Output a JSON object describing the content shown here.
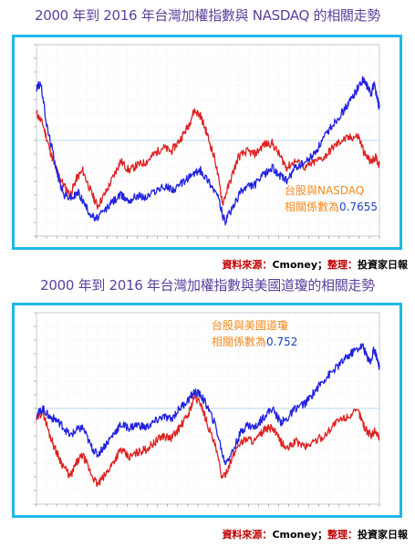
{
  "titles": {
    "chart1": "2000 年到 2016 年台灣加權指數與 NASDAQ 的相關走勢",
    "chart2": "2000 年到 2016 年台灣加權指數與美國道瓊的相關走勢"
  },
  "source": {
    "label": "資料來源：",
    "provider": "Cmoney；",
    "organizer_label": "整理：",
    "organizer": "投資家日報"
  },
  "chart_data": [
    {
      "type": "line",
      "annotation_title": "台股與NASDAQ",
      "correlation_label": "相關係數為",
      "correlation_value": "0.7655",
      "x_range": [
        2000,
        2016.3
      ],
      "y_range": [
        -70,
        70
      ],
      "series": [
        {
          "color": "#dd2222",
          "points": [
            [
              2000.0,
              20
            ],
            [
              2000.3,
              12
            ],
            [
              2000.6,
              -5
            ],
            [
              2000.9,
              -20
            ],
            [
              2001.2,
              -30
            ],
            [
              2001.6,
              -40
            ],
            [
              2001.9,
              -28
            ],
            [
              2002.2,
              -22
            ],
            [
              2002.6,
              -38
            ],
            [
              2002.9,
              -48
            ],
            [
              2003.3,
              -38
            ],
            [
              2003.7,
              -25
            ],
            [
              2004.0,
              -15
            ],
            [
              2004.4,
              -22
            ],
            [
              2004.8,
              -18
            ],
            [
              2005.2,
              -16
            ],
            [
              2005.6,
              -10
            ],
            [
              2006.0,
              -5
            ],
            [
              2006.4,
              -8
            ],
            [
              2006.8,
              0
            ],
            [
              2007.2,
              10
            ],
            [
              2007.5,
              22
            ],
            [
              2007.8,
              18
            ],
            [
              2008.1,
              5
            ],
            [
              2008.5,
              -15
            ],
            [
              2008.85,
              -46
            ],
            [
              2009.2,
              -30
            ],
            [
              2009.6,
              -12
            ],
            [
              2010.0,
              -8
            ],
            [
              2010.4,
              -10
            ],
            [
              2010.8,
              -3
            ],
            [
              2011.2,
              -2
            ],
            [
              2011.6,
              -12
            ],
            [
              2011.9,
              -20
            ],
            [
              2012.3,
              -15
            ],
            [
              2012.8,
              -20
            ],
            [
              2013.2,
              -16
            ],
            [
              2013.7,
              -12
            ],
            [
              2014.1,
              -5
            ],
            [
              2014.5,
              0
            ],
            [
              2014.9,
              2
            ],
            [
              2015.3,
              3
            ],
            [
              2015.6,
              -10
            ],
            [
              2015.9,
              -16
            ],
            [
              2016.1,
              -12
            ],
            [
              2016.3,
              -18
            ]
          ]
        },
        {
          "color": "#2222dd",
          "points": [
            [
              2000.0,
              38
            ],
            [
              2000.2,
              42
            ],
            [
              2000.5,
              10
            ],
            [
              2000.8,
              -10
            ],
            [
              2001.0,
              -25
            ],
            [
              2001.3,
              -40
            ],
            [
              2001.7,
              -42
            ],
            [
              2002.0,
              -38
            ],
            [
              2002.4,
              -50
            ],
            [
              2002.8,
              -58
            ],
            [
              2003.2,
              -52
            ],
            [
              2003.6,
              -45
            ],
            [
              2004.0,
              -40
            ],
            [
              2004.4,
              -44
            ],
            [
              2004.8,
              -40
            ],
            [
              2005.2,
              -42
            ],
            [
              2005.7,
              -36
            ],
            [
              2006.2,
              -34
            ],
            [
              2006.6,
              -36
            ],
            [
              2007.0,
              -30
            ],
            [
              2007.5,
              -24
            ],
            [
              2007.8,
              -22
            ],
            [
              2008.2,
              -30
            ],
            [
              2008.6,
              -40
            ],
            [
              2008.95,
              -60
            ],
            [
              2009.3,
              -50
            ],
            [
              2009.7,
              -38
            ],
            [
              2010.0,
              -34
            ],
            [
              2010.4,
              -32
            ],
            [
              2010.8,
              -25
            ],
            [
              2011.2,
              -20
            ],
            [
              2011.6,
              -26
            ],
            [
              2011.9,
              -30
            ],
            [
              2012.3,
              -20
            ],
            [
              2012.8,
              -16
            ],
            [
              2013.2,
              -10
            ],
            [
              2013.6,
              0
            ],
            [
              2014.0,
              10
            ],
            [
              2014.4,
              18
            ],
            [
              2014.8,
              26
            ],
            [
              2015.1,
              34
            ],
            [
              2015.5,
              44
            ],
            [
              2015.7,
              40
            ],
            [
              2015.9,
              34
            ],
            [
              2016.05,
              42
            ],
            [
              2016.2,
              30
            ],
            [
              2016.3,
              24
            ]
          ]
        }
      ]
    },
    {
      "type": "line",
      "annotation_title": "台股與美國道瓊",
      "correlation_label": "相關係數為",
      "correlation_value": "0.752",
      "x_range": [
        2000,
        2016.3
      ],
      "y_range": [
        -70,
        70
      ],
      "series": [
        {
          "color": "#dd2222",
          "points": [
            [
              2000.0,
              -8
            ],
            [
              2000.3,
              -2
            ],
            [
              2000.6,
              -18
            ],
            [
              2000.9,
              -30
            ],
            [
              2001.2,
              -40
            ],
            [
              2001.6,
              -50
            ],
            [
              2001.9,
              -40
            ],
            [
              2002.2,
              -34
            ],
            [
              2002.6,
              -48
            ],
            [
              2002.9,
              -56
            ],
            [
              2003.3,
              -48
            ],
            [
              2003.7,
              -38
            ],
            [
              2004.0,
              -30
            ],
            [
              2004.4,
              -36
            ],
            [
              2004.8,
              -32
            ],
            [
              2005.2,
              -30
            ],
            [
              2005.6,
              -25
            ],
            [
              2006.0,
              -20
            ],
            [
              2006.4,
              -22
            ],
            [
              2006.8,
              -14
            ],
            [
              2007.2,
              -5
            ],
            [
              2007.5,
              8
            ],
            [
              2007.8,
              4
            ],
            [
              2008.1,
              -10
            ],
            [
              2008.5,
              -28
            ],
            [
              2008.85,
              -52
            ],
            [
              2009.2,
              -40
            ],
            [
              2009.6,
              -26
            ],
            [
              2010.0,
              -22
            ],
            [
              2010.4,
              -24
            ],
            [
              2010.8,
              -16
            ],
            [
              2011.2,
              -14
            ],
            [
              2011.6,
              -24
            ],
            [
              2011.9,
              -30
            ],
            [
              2012.3,
              -24
            ],
            [
              2012.8,
              -28
            ],
            [
              2013.2,
              -24
            ],
            [
              2013.7,
              -20
            ],
            [
              2014.1,
              -12
            ],
            [
              2014.5,
              -8
            ],
            [
              2014.9,
              -5
            ],
            [
              2015.3,
              -2
            ],
            [
              2015.6,
              -14
            ],
            [
              2015.9,
              -20
            ],
            [
              2016.1,
              -16
            ],
            [
              2016.3,
              -22
            ]
          ]
        },
        {
          "color": "#2222dd",
          "points": [
            [
              2000.0,
              -5
            ],
            [
              2000.3,
              0
            ],
            [
              2000.6,
              -6
            ],
            [
              2000.9,
              -8
            ],
            [
              2001.2,
              -12
            ],
            [
              2001.6,
              -20
            ],
            [
              2001.9,
              -16
            ],
            [
              2002.2,
              -14
            ],
            [
              2002.6,
              -28
            ],
            [
              2002.9,
              -34
            ],
            [
              2003.3,
              -26
            ],
            [
              2003.7,
              -18
            ],
            [
              2004.0,
              -12
            ],
            [
              2004.4,
              -14
            ],
            [
              2004.8,
              -12
            ],
            [
              2005.2,
              -14
            ],
            [
              2005.6,
              -10
            ],
            [
              2006.0,
              -6
            ],
            [
              2006.4,
              -8
            ],
            [
              2006.8,
              0
            ],
            [
              2007.2,
              6
            ],
            [
              2007.5,
              12
            ],
            [
              2007.8,
              10
            ],
            [
              2008.1,
              2
            ],
            [
              2008.5,
              -12
            ],
            [
              2008.95,
              -40
            ],
            [
              2009.3,
              -32
            ],
            [
              2009.7,
              -18
            ],
            [
              2010.0,
              -12
            ],
            [
              2010.4,
              -14
            ],
            [
              2010.8,
              -6
            ],
            [
              2011.2,
              0
            ],
            [
              2011.6,
              -10
            ],
            [
              2011.9,
              -8
            ],
            [
              2012.3,
              0
            ],
            [
              2012.8,
              4
            ],
            [
              2013.2,
              12
            ],
            [
              2013.6,
              20
            ],
            [
              2014.0,
              26
            ],
            [
              2014.4,
              32
            ],
            [
              2014.8,
              38
            ],
            [
              2015.1,
              42
            ],
            [
              2015.5,
              46
            ],
            [
              2015.7,
              38
            ],
            [
              2015.9,
              34
            ],
            [
              2016.05,
              44
            ],
            [
              2016.2,
              36
            ],
            [
              2016.3,
              30
            ]
          ]
        }
      ]
    }
  ],
  "colors": {
    "title": "#5b3f9e",
    "frame": "#1fb7ea",
    "callout_orange": "#f28a1e",
    "callout_blue": "#1c3fc7",
    "source_red": "#c00000"
  }
}
